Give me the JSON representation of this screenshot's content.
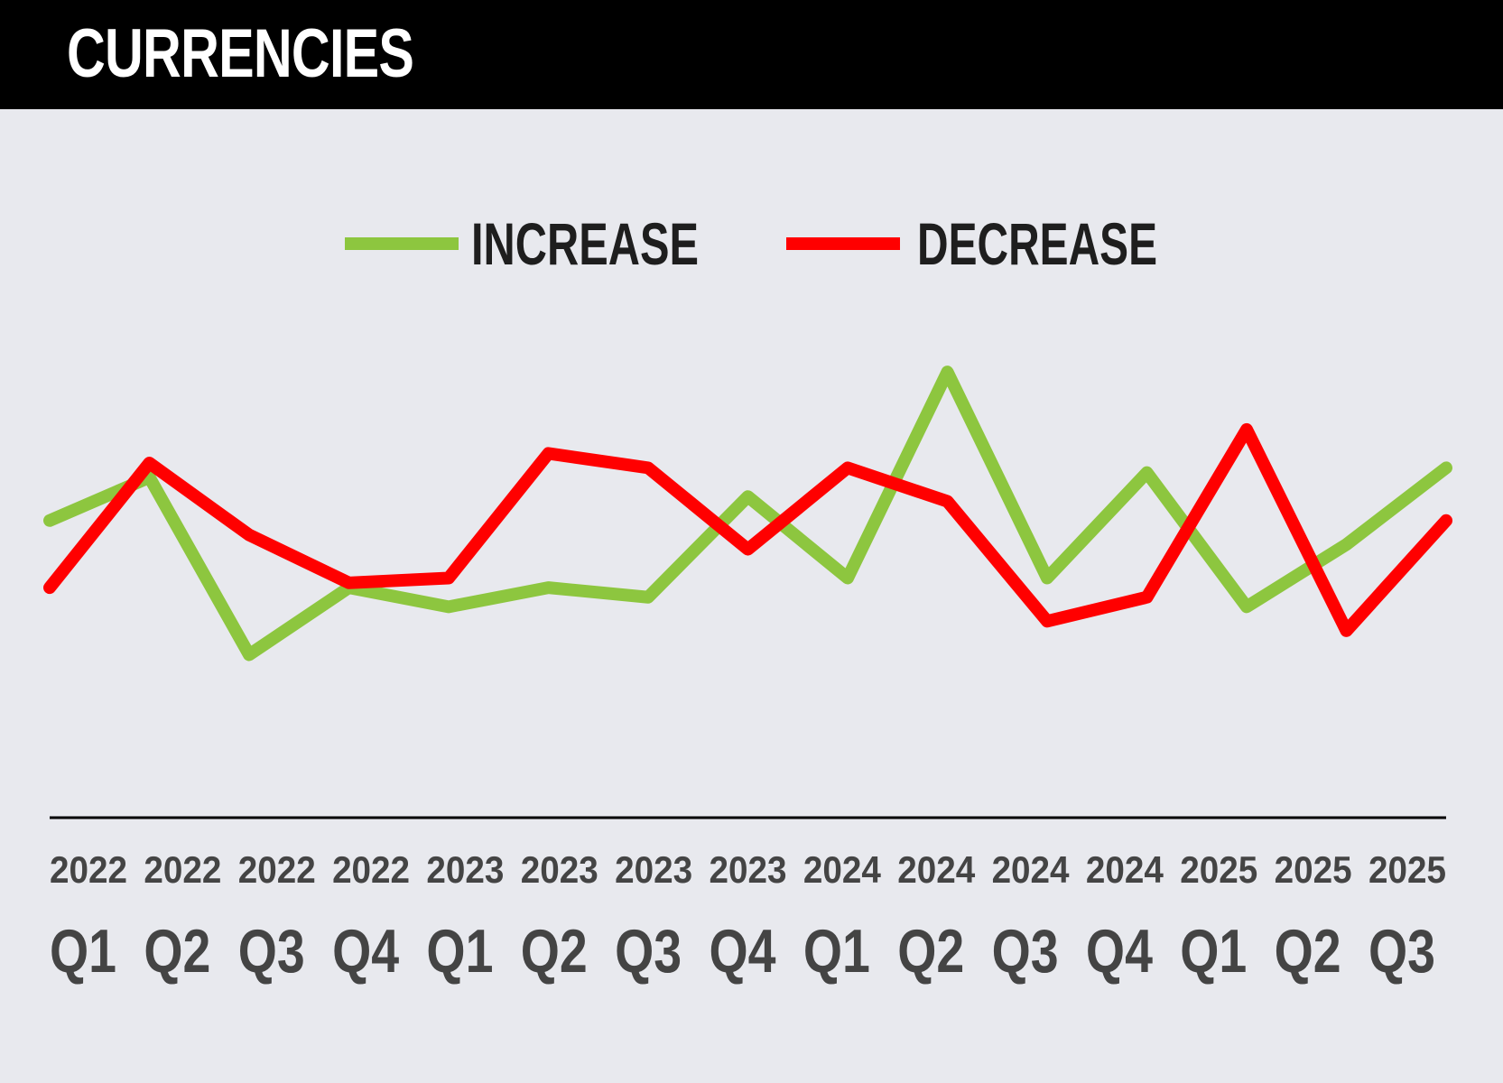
{
  "header": {
    "title": "CURRENCIES"
  },
  "chart_data": {
    "type": "line",
    "title": "CURRENCIES",
    "xlabel": "",
    "ylabel": "",
    "x_years": [
      "2022",
      "2022",
      "2022",
      "2022",
      "2023",
      "2023",
      "2023",
      "2023",
      "2024",
      "2024",
      "2024",
      "2024",
      "2025",
      "2025",
      "2025"
    ],
    "x_quarters": [
      "Q1",
      "Q2",
      "Q3",
      "Q4",
      "Q1",
      "Q2",
      "Q3",
      "Q4",
      "Q1",
      "Q2",
      "Q3",
      "Q4",
      "Q1",
      "Q2",
      "Q3"
    ],
    "ylim": [
      0,
      100
    ],
    "grid": false,
    "legend": "top-center",
    "series": [
      {
        "name": "INCREASE",
        "color": "#8dc63f",
        "values": [
          62,
          71,
          34,
          48,
          44,
          48,
          46,
          67,
          50,
          93,
          50,
          72,
          44,
          57,
          73
        ]
      },
      {
        "name": "DECREASE",
        "color": "#ff0000",
        "values": [
          48,
          74,
          59,
          49,
          50,
          76,
          73,
          56,
          73,
          66,
          41,
          46,
          81,
          39,
          62
        ]
      }
    ]
  }
}
